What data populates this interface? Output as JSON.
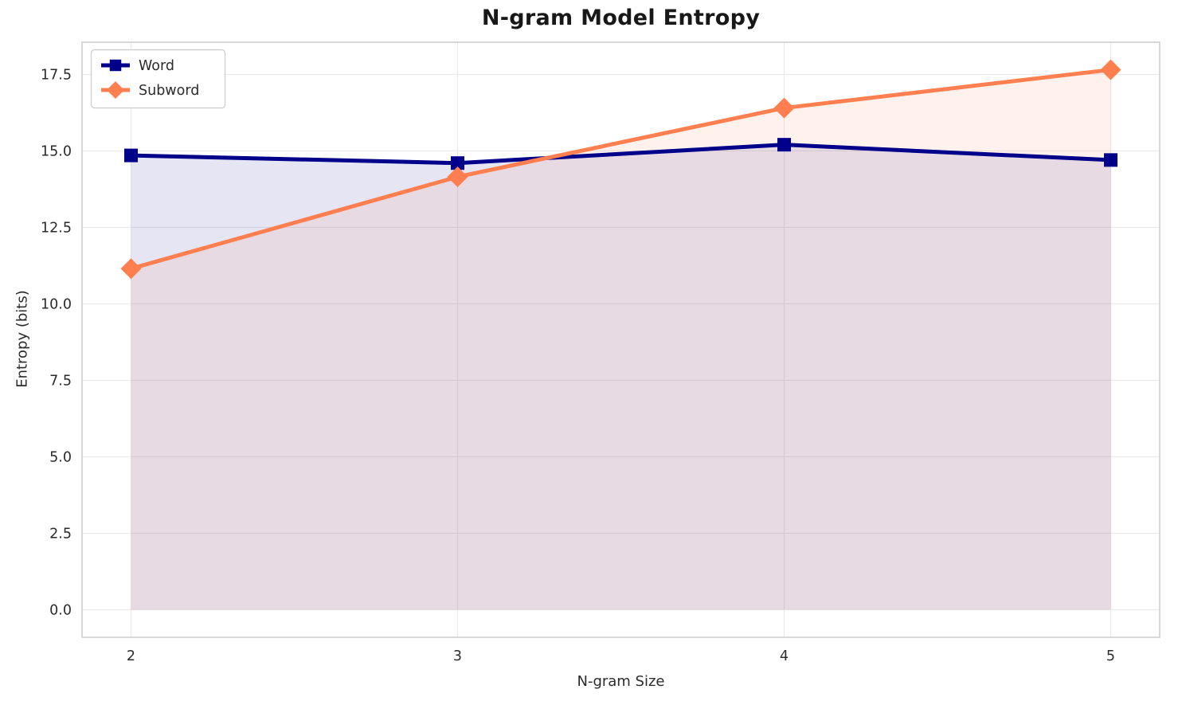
{
  "figure": {
    "title": "N-gram Model Entropy"
  },
  "chart_data": {
    "type": "line",
    "title": "N-gram Model Entropy",
    "xlabel": "N-gram Size",
    "ylabel": "Entropy (bits)",
    "x": [
      2,
      3,
      4,
      5
    ],
    "xticks": [
      "2",
      "3",
      "4",
      "5"
    ],
    "yticks": [
      0.0,
      2.5,
      5.0,
      7.5,
      10.0,
      12.5,
      15.0,
      17.5
    ],
    "xlim": [
      1.85,
      5.15
    ],
    "ylim": [
      -0.9,
      18.55
    ],
    "grid": true,
    "legend": {
      "position": "upper-left",
      "entries": [
        "Word",
        "Subword"
      ]
    },
    "series": [
      {
        "name": "Word",
        "color": "#00008B",
        "marker": "square",
        "fill_alpha": 0.1,
        "values": [
          14.85,
          14.6,
          15.2,
          14.7
        ]
      },
      {
        "name": "Subword",
        "color": "#FF7F50",
        "marker": "diamond",
        "fill_alpha": 0.1,
        "values": [
          11.15,
          14.15,
          16.4,
          17.65
        ]
      }
    ]
  }
}
